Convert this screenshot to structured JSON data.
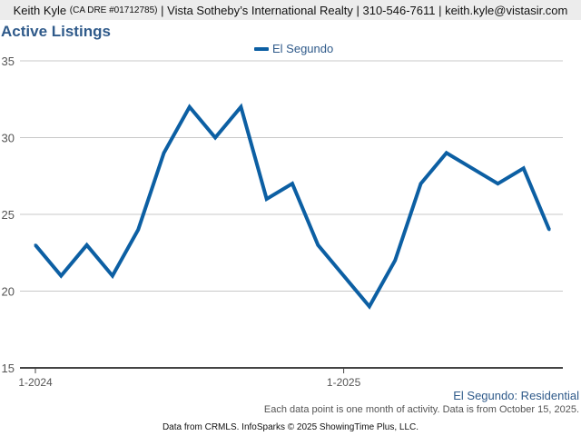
{
  "header": {
    "agent_name": "Keith Kyle",
    "dre": "(CA DRE #01712785)",
    "details": "| Vista Sotheby’s International Realty | 310-546-7611 | keith.kyle@vistasir.com"
  },
  "chart_data": {
    "type": "line",
    "title": "Active Listings",
    "xlabel": "",
    "ylabel": "",
    "ylim": [
      15,
      35
    ],
    "yticks": [
      "15",
      "20",
      "25",
      "30",
      "35"
    ],
    "xtick_labels": [
      "1-2024",
      "1-2025"
    ],
    "legend_position": "top-center",
    "grid": true,
    "x": [
      "2024-01",
      "2024-02",
      "2024-03",
      "2024-04",
      "2024-05",
      "2024-06",
      "2024-07",
      "2024-08",
      "2024-09",
      "2024-10",
      "2024-11",
      "2024-12",
      "2025-01",
      "2025-02",
      "2025-03",
      "2025-04",
      "2025-05",
      "2025-06",
      "2025-07",
      "2025-08",
      "2025-09"
    ],
    "series": [
      {
        "name": "El Segundo",
        "color": "#0c5fa3",
        "values": [
          23,
          21,
          23,
          21,
          24,
          29,
          32,
          30,
          32,
          26,
          27,
          23,
          21,
          19,
          22,
          27,
          29,
          28,
          27,
          28,
          24
        ]
      }
    ]
  },
  "region_label": "El Segundo: Residential",
  "note": "Each data point is one month of activity. Data is from October 15, 2025.",
  "footer": "Data from CRMLS. InfoSparks © 2025 ShowingTime Plus, LLC."
}
